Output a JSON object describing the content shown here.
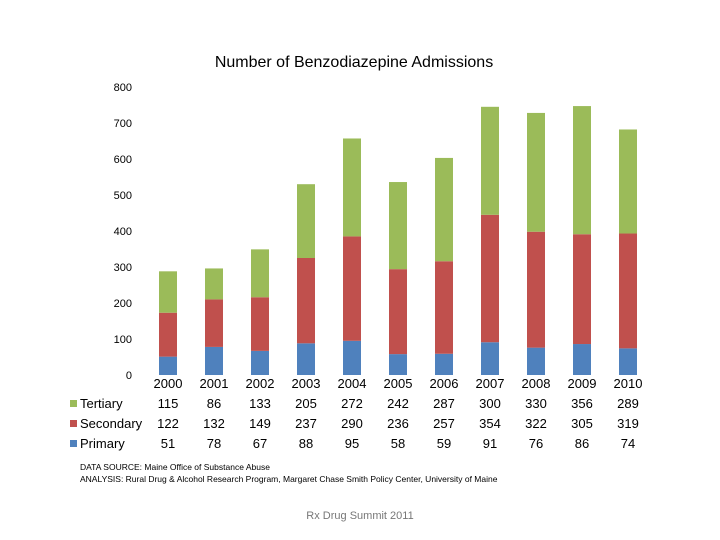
{
  "chart_data": {
    "type": "bar",
    "stacked": true,
    "title": "Number of Benzodiazepine Admissions",
    "xlabel": "",
    "ylabel": "",
    "ylim": [
      0,
      800
    ],
    "yticks": [
      0,
      100,
      200,
      300,
      400,
      500,
      600,
      700,
      800
    ],
    "categories": [
      "2000",
      "2001",
      "2002",
      "2003",
      "2004",
      "2005",
      "2006",
      "2007",
      "2008",
      "2009",
      "2010"
    ],
    "series": [
      {
        "name": "Primary",
        "color": "#4F81BD",
        "values": [
          51,
          78,
          67,
          88,
          95,
          58,
          59,
          91,
          76,
          86,
          74
        ]
      },
      {
        "name": "Secondary",
        "color": "#C0504D",
        "values": [
          122,
          132,
          149,
          237,
          290,
          236,
          257,
          354,
          322,
          305,
          319
        ]
      },
      {
        "name": "Tertiary",
        "color": "#9BBB59",
        "values": [
          115,
          86,
          133,
          205,
          272,
          242,
          287,
          300,
          330,
          356,
          289
        ]
      }
    ],
    "table_row_order": [
      "Tertiary",
      "Secondary",
      "Primary"
    ],
    "gridlines": false
  },
  "notes": {
    "source": "DATA SOURCE: Maine Office of Substance Abuse",
    "analysis": "ANALYSIS: Rural Drug & Alcohol Research Program, Margaret Chase Smith Policy Center, University of Maine"
  },
  "footer": "Rx Drug Summit 2011"
}
